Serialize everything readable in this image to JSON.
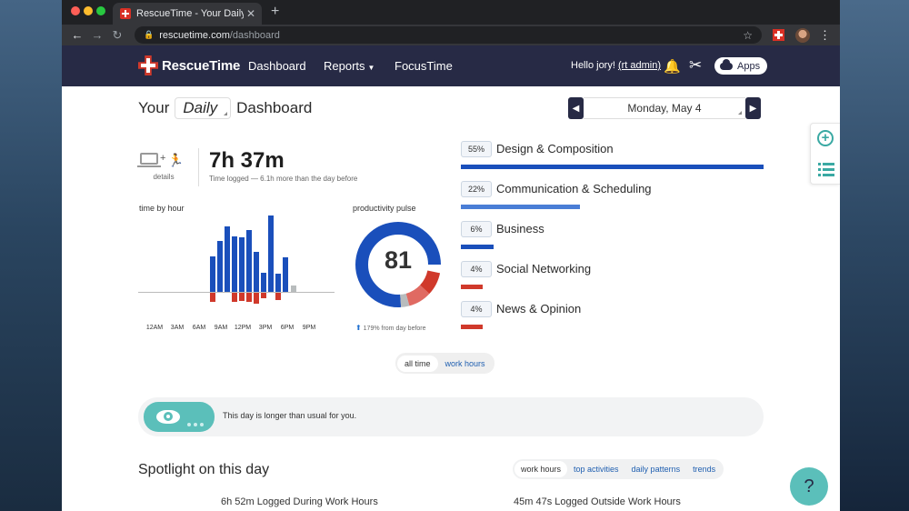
{
  "browser": {
    "tab_title": "RescueTime - Your Daily dashb",
    "tab_close": "✕",
    "new_tab": "+",
    "url_host": "rescuetime.com",
    "url_path": "/dashboard"
  },
  "header": {
    "logo_text": "RescueTime",
    "nav": [
      "Dashboard",
      "Reports",
      "FocusTime"
    ],
    "hello_prefix": "Hello jory! ",
    "hello_link": "(rt admin)",
    "apps_label": "Apps"
  },
  "page": {
    "title_prefix": "Your",
    "title_select": "Daily",
    "title_suffix": "Dashboard",
    "date": "Monday, May 4"
  },
  "summary": {
    "details_label": "details",
    "plus": "+",
    "total_time": "7h 37m",
    "time_sub": "Time logged — 6.1h more than the day before"
  },
  "time_by_hour": {
    "label": "time by hour",
    "hour_labels": [
      "12AM",
      "3AM",
      "6AM",
      "9AM",
      "12PM",
      "3PM",
      "6PM",
      "9PM"
    ]
  },
  "pulse": {
    "label": "productivity pulse",
    "score": "81",
    "delta": "179% from day before",
    "colors": {
      "very_productive": "#1a4fbb",
      "neutral": "#b8bcbd",
      "distracting": "#e06a62",
      "very_distracting": "#d0392b"
    }
  },
  "categories": [
    {
      "pct": "55%",
      "name": "Design & Composition",
      "share": 1.0,
      "color": "#1a4fbb"
    },
    {
      "pct": "22%",
      "name": "Communication & Scheduling",
      "share": 0.39,
      "color": "#4a7ed6"
    },
    {
      "pct": "6%",
      "name": "Business",
      "share": 0.11,
      "color": "#1a4fbb"
    },
    {
      "pct": "4%",
      "name": "Social Networking",
      "share": 0.07,
      "color": "#d0392b"
    },
    {
      "pct": "4%",
      "name": "News & Opinion",
      "share": 0.07,
      "color": "#d0392b"
    }
  ],
  "toggle": {
    "all_time": "all time",
    "work_hours": "work hours"
  },
  "banner": {
    "text": "This day is longer than usual for you."
  },
  "spotlight": {
    "title": "Spotlight on this day",
    "tabs": [
      "work hours",
      "top activities",
      "daily patterns",
      "trends"
    ],
    "logged_in": "6h 52m Logged During Work Hours",
    "logged_out": "45m 47s Logged Outside Work Hours"
  },
  "help": {
    "label": "?"
  },
  "icons": [
    "lock-icon",
    "star-icon",
    "bell-icon",
    "tools-icon",
    "cloud-icon",
    "plus-icon",
    "list-icon",
    "laptop-icon",
    "runner-icon",
    "eye-icon"
  ]
}
